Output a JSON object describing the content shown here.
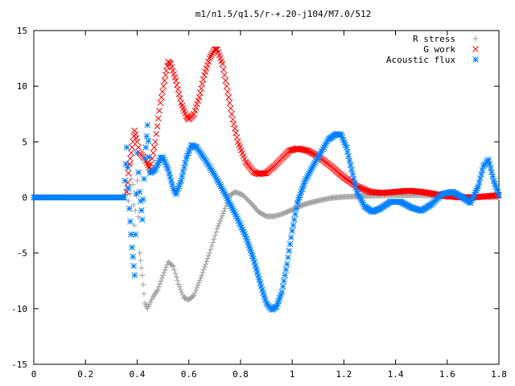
{
  "chart_data": {
    "type": "scatter",
    "title": "m1/n1.5/q1.5/r-+.20-j104/M7.0/512",
    "xlabel": "",
    "ylabel": "",
    "xlim": [
      0,
      1.8
    ],
    "ylim": [
      -15,
      15
    ],
    "x_ticks": [
      "0",
      "0.2",
      "0.4",
      "0.6",
      "0.8",
      "1",
      "1.2",
      "1.4",
      "1.6",
      "1.8"
    ],
    "y_ticks": [
      "15",
      "10",
      "5",
      "0",
      "-5",
      "-10",
      "-15"
    ],
    "x_tick_values": [
      0,
      0.2,
      0.4,
      0.6,
      0.8,
      1.0,
      1.2,
      1.4,
      1.6,
      1.8
    ],
    "y_tick_values": [
      15,
      10,
      5,
      0,
      -5,
      -10,
      -15
    ],
    "grid": false,
    "legend_position": "top-right",
    "series": [
      {
        "name": "R stress",
        "marker": "plus",
        "color": "#a0a0a0",
        "points": [
          [
            0.0,
            0.0
          ],
          [
            0.35,
            0.0
          ],
          [
            0.36,
            1.0
          ],
          [
            0.37,
            -1.0
          ],
          [
            0.38,
            3.0
          ],
          [
            0.39,
            -2.5
          ],
          [
            0.4,
            1.5
          ],
          [
            0.41,
            -5.0
          ],
          [
            0.42,
            -7.0
          ],
          [
            0.43,
            -9.5
          ],
          [
            0.44,
            -10.0
          ],
          [
            0.46,
            -9.0
          ],
          [
            0.48,
            -8.3
          ],
          [
            0.5,
            -7.0
          ],
          [
            0.52,
            -5.8
          ],
          [
            0.54,
            -6.2
          ],
          [
            0.56,
            -7.8
          ],
          [
            0.58,
            -9.0
          ],
          [
            0.6,
            -9.2
          ],
          [
            0.62,
            -8.8
          ],
          [
            0.65,
            -7.0
          ],
          [
            0.68,
            -5.0
          ],
          [
            0.71,
            -2.8
          ],
          [
            0.74,
            -1.0
          ],
          [
            0.76,
            0.2
          ],
          [
            0.78,
            0.5
          ],
          [
            0.81,
            0.2
          ],
          [
            0.84,
            -0.5
          ],
          [
            0.87,
            -1.3
          ],
          [
            0.9,
            -1.7
          ],
          [
            0.93,
            -1.7
          ],
          [
            0.96,
            -1.5
          ],
          [
            1.0,
            -1.1
          ],
          [
            1.05,
            -0.6
          ],
          [
            1.1,
            -0.3
          ],
          [
            1.15,
            -0.05
          ],
          [
            1.2,
            0.05
          ],
          [
            1.3,
            0.15
          ],
          [
            1.4,
            0.2
          ],
          [
            1.5,
            0.2
          ],
          [
            1.6,
            0.1
          ],
          [
            1.7,
            0.05
          ],
          [
            1.8,
            0.0
          ]
        ]
      },
      {
        "name": "G work",
        "marker": "cross",
        "color": "#ff0000",
        "points": [
          [
            0.36,
            0.5
          ],
          [
            0.37,
            3.0
          ],
          [
            0.38,
            4.5
          ],
          [
            0.39,
            6.0
          ],
          [
            0.4,
            5.0
          ],
          [
            0.41,
            4.0
          ],
          [
            0.43,
            3.5
          ],
          [
            0.45,
            2.5
          ],
          [
            0.47,
            5.0
          ],
          [
            0.49,
            8.5
          ],
          [
            0.51,
            11.0
          ],
          [
            0.52,
            12.2
          ],
          [
            0.53,
            12.0
          ],
          [
            0.55,
            10.5
          ],
          [
            0.57,
            8.5
          ],
          [
            0.59,
            7.3
          ],
          [
            0.6,
            7.0
          ],
          [
            0.62,
            7.5
          ],
          [
            0.64,
            9.0
          ],
          [
            0.66,
            11.0
          ],
          [
            0.68,
            12.5
          ],
          [
            0.7,
            13.3
          ],
          [
            0.71,
            13.3
          ],
          [
            0.73,
            12.0
          ],
          [
            0.75,
            9.5
          ],
          [
            0.77,
            7.0
          ],
          [
            0.79,
            5.0
          ],
          [
            0.82,
            3.2
          ],
          [
            0.85,
            2.3
          ],
          [
            0.87,
            2.1
          ],
          [
            0.9,
            2.2
          ],
          [
            0.93,
            2.8
          ],
          [
            0.96,
            3.5
          ],
          [
            0.99,
            4.2
          ],
          [
            1.02,
            4.4
          ],
          [
            1.06,
            4.2
          ],
          [
            1.1,
            3.7
          ],
          [
            1.15,
            2.8
          ],
          [
            1.2,
            1.8
          ],
          [
            1.25,
            1.0
          ],
          [
            1.3,
            0.5
          ],
          [
            1.35,
            0.4
          ],
          [
            1.4,
            0.5
          ],
          [
            1.45,
            0.6
          ],
          [
            1.5,
            0.5
          ],
          [
            1.55,
            0.3
          ],
          [
            1.6,
            0.1
          ],
          [
            1.65,
            0.0
          ],
          [
            1.7,
            0.0
          ],
          [
            1.75,
            0.1
          ],
          [
            1.8,
            0.2
          ]
        ]
      },
      {
        "name": "Acoustic flux",
        "marker": "star",
        "color": "#0080ff",
        "points": [
          [
            0.0,
            0.0
          ],
          [
            0.35,
            0.0
          ],
          [
            0.36,
            4.5
          ],
          [
            0.37,
            -1.0
          ],
          [
            0.38,
            -4.5
          ],
          [
            0.39,
            -7.0
          ],
          [
            0.4,
            4.0
          ],
          [
            0.41,
            0.5
          ],
          [
            0.42,
            -2.0
          ],
          [
            0.43,
            3.5
          ],
          [
            0.44,
            6.5
          ],
          [
            0.45,
            2.2
          ],
          [
            0.47,
            2.5
          ],
          [
            0.49,
            3.5
          ],
          [
            0.5,
            3.6
          ],
          [
            0.52,
            2.5
          ],
          [
            0.54,
            0.8
          ],
          [
            0.55,
            0.3
          ],
          [
            0.57,
            1.5
          ],
          [
            0.59,
            3.5
          ],
          [
            0.61,
            4.7
          ],
          [
            0.63,
            4.5
          ],
          [
            0.66,
            3.5
          ],
          [
            0.7,
            2.0
          ],
          [
            0.74,
            0.3
          ],
          [
            0.78,
            -1.5
          ],
          [
            0.82,
            -3.5
          ],
          [
            0.85,
            -5.5
          ],
          [
            0.88,
            -8.0
          ],
          [
            0.9,
            -9.5
          ],
          [
            0.92,
            -10.1
          ],
          [
            0.94,
            -9.8
          ],
          [
            0.96,
            -8.5
          ],
          [
            0.98,
            -6.0
          ],
          [
            1.0,
            -3.0
          ],
          [
            1.02,
            -0.5
          ],
          [
            1.05,
            1.5
          ],
          [
            1.08,
            2.8
          ],
          [
            1.11,
            4.0
          ],
          [
            1.14,
            5.2
          ],
          [
            1.17,
            5.7
          ],
          [
            1.19,
            5.6
          ],
          [
            1.21,
            4.5
          ],
          [
            1.23,
            2.5
          ],
          [
            1.25,
            0.5
          ],
          [
            1.28,
            -0.8
          ],
          [
            1.31,
            -1.3
          ],
          [
            1.34,
            -1.0
          ],
          [
            1.38,
            -0.4
          ],
          [
            1.42,
            -0.4
          ],
          [
            1.46,
            -0.9
          ],
          [
            1.5,
            -1.2
          ],
          [
            1.54,
            -0.6
          ],
          [
            1.58,
            0.3
          ],
          [
            1.62,
            0.5
          ],
          [
            1.66,
            0.0
          ],
          [
            1.69,
            -0.5
          ],
          [
            1.72,
            1.0
          ],
          [
            1.74,
            2.8
          ],
          [
            1.76,
            3.4
          ],
          [
            1.78,
            1.5
          ],
          [
            1.8,
            0.2
          ]
        ]
      }
    ]
  }
}
